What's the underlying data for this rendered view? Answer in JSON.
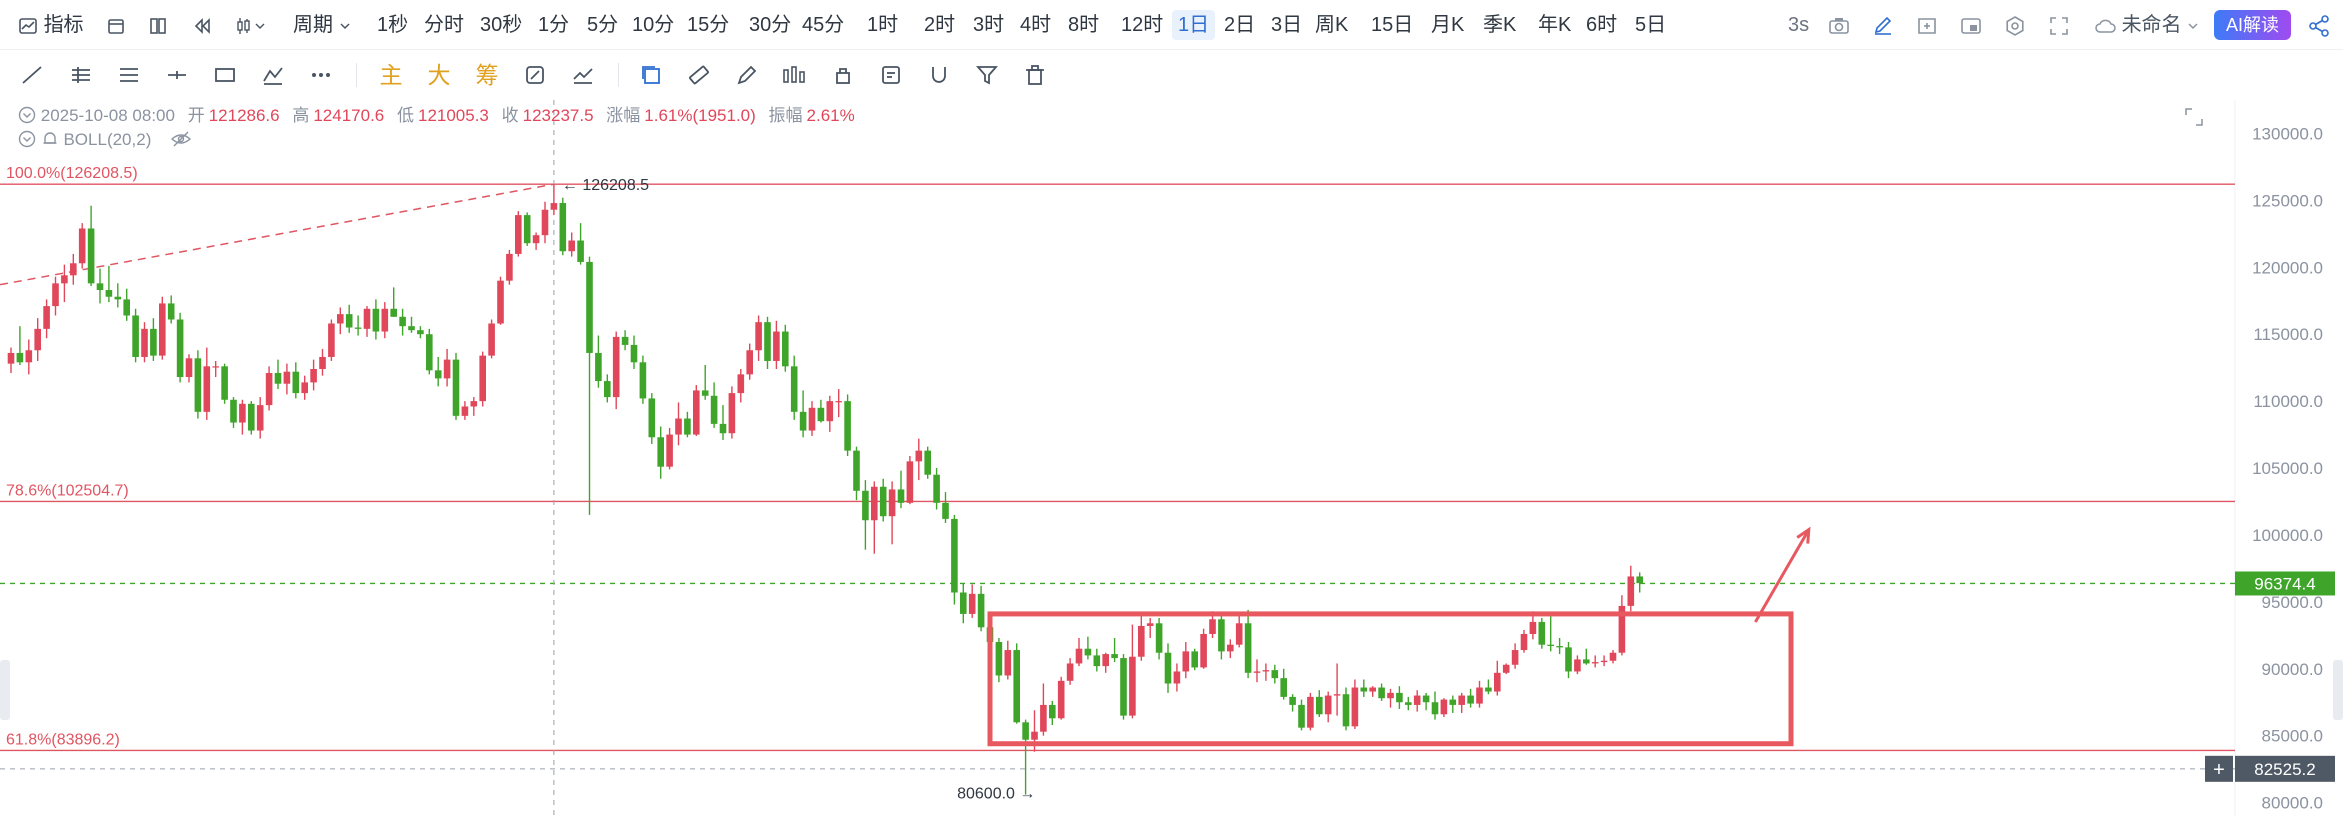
{
  "toolbar": {
    "indicator_label": "指标",
    "period_label": "周期",
    "intervals": [
      "1秒",
      "分时",
      "30秒",
      "1分",
      "5分",
      "10分",
      "15分",
      "30分",
      "45分",
      "1时",
      "2时",
      "3时",
      "4时",
      "8时",
      "12时",
      "1日",
      "2日",
      "3日",
      "周K",
      "15日",
      "月K",
      "季K",
      "年K",
      "6时",
      "5日"
    ],
    "active_interval": "1日",
    "refresh": "3s",
    "layout_name": "未命名",
    "ai_label": "AI解读"
  },
  "drawing_tools": {
    "main_label": "主",
    "big_label": "大",
    "chip_label": "筹"
  },
  "ohlc": {
    "date": "2025-10-08 08:00",
    "open_label": "开",
    "open": "121286.6",
    "high_label": "高",
    "high": "124170.6",
    "low_label": "低",
    "low": "121005.3",
    "close_label": "收",
    "close": "123237.5",
    "change_label": "涨幅",
    "change": "1.61%(1951.0)",
    "amplitude_label": "振幅",
    "amplitude": "2.61%"
  },
  "indicator": {
    "name": "BOLL(20,2)"
  },
  "colors": {
    "up": "#e0475a",
    "down": "#3fa52a",
    "fib_line": "#e05562",
    "box": "#e8585f",
    "price_tag": "#3fa52a",
    "crosshair_tag": "#4f5966",
    "accent": "#2f6fd1"
  },
  "chart_data": {
    "type": "candlestick",
    "ylim": [
      79000,
      132500
    ],
    "y_ticks": [
      80000,
      85000,
      90000,
      95000,
      100000,
      105000,
      110000,
      115000,
      120000,
      125000,
      130000
    ],
    "y_tick_labels": [
      "80000.0",
      "85000.0",
      "90000.0",
      "95000.0",
      "100000.0",
      "105000.0",
      "110000.0",
      "115000.0",
      "120000.0",
      "125000.0",
      "130000.0"
    ],
    "candle_count": 198,
    "candles": [
      [
        112800,
        114000,
        112100,
        113600
      ],
      [
        113600,
        115600,
        112700,
        112900
      ],
      [
        112900,
        114600,
        112000,
        113800
      ],
      [
        113800,
        116200,
        113000,
        115400
      ],
      [
        115400,
        117600,
        114700,
        117100
      ],
      [
        117100,
        119300,
        116400,
        118800
      ],
      [
        118800,
        120200,
        117400,
        119400
      ],
      [
        119400,
        121000,
        118700,
        120300
      ],
      [
        120300,
        123300,
        119900,
        122900
      ],
      [
        122900,
        124600,
        118600,
        118800
      ],
      [
        118800,
        119900,
        117300,
        118300
      ],
      [
        118300,
        120100,
        117400,
        117800
      ],
      [
        117800,
        118800,
        117000,
        117600
      ],
      [
        117600,
        118400,
        116000,
        116400
      ],
      [
        116400,
        116900,
        112900,
        113300
      ],
      [
        113300,
        115900,
        112900,
        115400
      ],
      [
        115400,
        116200,
        113000,
        113400
      ],
      [
        113400,
        117800,
        113100,
        117300
      ],
      [
        117300,
        117900,
        115800,
        116100
      ],
      [
        116100,
        116600,
        111400,
        111800
      ],
      [
        111800,
        113500,
        111400,
        113200
      ],
      [
        113200,
        113800,
        108700,
        109200
      ],
      [
        109200,
        114000,
        108600,
        112600
      ],
      [
        112600,
        113000,
        111800,
        112600
      ],
      [
        112600,
        112800,
        109800,
        110100
      ],
      [
        110100,
        110300,
        108000,
        108400
      ],
      [
        108400,
        110100,
        107500,
        109800
      ],
      [
        109800,
        110000,
        107500,
        107800
      ],
      [
        107800,
        110300,
        107200,
        109700
      ],
      [
        109700,
        112600,
        109300,
        112100
      ],
      [
        112100,
        113100,
        110900,
        111300
      ],
      [
        111300,
        112800,
        110500,
        112200
      ],
      [
        112200,
        112900,
        110200,
        110600
      ],
      [
        110600,
        111900,
        110100,
        111400
      ],
      [
        111400,
        113100,
        110800,
        112400
      ],
      [
        112400,
        113900,
        111900,
        113300
      ],
      [
        113300,
        116100,
        113000,
        115800
      ],
      [
        115800,
        117000,
        115000,
        116500
      ],
      [
        116500,
        117200,
        115100,
        115500
      ],
      [
        115500,
        116400,
        114900,
        115400
      ],
      [
        115400,
        117100,
        114800,
        116900
      ],
      [
        116900,
        117600,
        114600,
        115200
      ],
      [
        115200,
        117400,
        114700,
        116900
      ],
      [
        116900,
        118500,
        116300,
        116300
      ],
      [
        116300,
        116900,
        114900,
        115600
      ],
      [
        115600,
        116300,
        115100,
        115300
      ],
      [
        115300,
        115600,
        114700,
        115000
      ],
      [
        115000,
        115400,
        112000,
        112300
      ],
      [
        112300,
        113300,
        111100,
        111700
      ],
      [
        111700,
        113900,
        111100,
        113100
      ],
      [
        113100,
        113600,
        108600,
        108900
      ],
      [
        108900,
        110000,
        108600,
        109600
      ],
      [
        109600,
        110300,
        108900,
        110000
      ],
      [
        110000,
        113700,
        109600,
        113400
      ],
      [
        113400,
        116100,
        113200,
        115800
      ],
      [
        115800,
        119300,
        115700,
        119000
      ],
      [
        119000,
        121300,
        118700,
        121000
      ],
      [
        121000,
        124200,
        120800,
        123900
      ],
      [
        123900,
        124100,
        121600,
        121800
      ],
      [
        121800,
        122600,
        121300,
        122400
      ],
      [
        122400,
        124900,
        121800,
        124300
      ],
      [
        124300,
        126208,
        123900,
        124800
      ],
      [
        124800,
        125200,
        120900,
        121200
      ],
      [
        121200,
        122600,
        120800,
        122000
      ],
      [
        122000,
        123300,
        120200,
        120400
      ],
      [
        120400,
        120800,
        101500,
        113600
      ],
      [
        113600,
        114900,
        111000,
        111500
      ],
      [
        111500,
        112000,
        109900,
        110300
      ],
      [
        110300,
        115200,
        109400,
        114800
      ],
      [
        114800,
        115300,
        113800,
        114200
      ],
      [
        114200,
        114900,
        112400,
        112900
      ],
      [
        112900,
        113400,
        109800,
        110200
      ],
      [
        110200,
        110600,
        106800,
        107300
      ],
      [
        107300,
        108100,
        104200,
        105100
      ],
      [
        105100,
        108000,
        104900,
        107500
      ],
      [
        107500,
        109900,
        106700,
        108700
      ],
      [
        108700,
        109200,
        107300,
        107500
      ],
      [
        107500,
        111200,
        107400,
        110800
      ],
      [
        110800,
        112700,
        110100,
        110400
      ],
      [
        110400,
        111400,
        108000,
        108300
      ],
      [
        108300,
        109700,
        107100,
        107600
      ],
      [
        107600,
        111100,
        107200,
        110600
      ],
      [
        110600,
        112400,
        109900,
        112000
      ],
      [
        112000,
        114300,
        111600,
        113800
      ],
      [
        113800,
        116400,
        113000,
        115900
      ],
      [
        115900,
        116300,
        112400,
        113000
      ],
      [
        113000,
        116000,
        112400,
        115200
      ],
      [
        115200,
        115700,
        112200,
        112600
      ],
      [
        112600,
        113400,
        108600,
        109200
      ],
      [
        109200,
        110800,
        107300,
        107800
      ],
      [
        107800,
        110000,
        107400,
        109500
      ],
      [
        109500,
        110100,
        108400,
        108500
      ],
      [
        108500,
        110400,
        107700,
        110000
      ],
      [
        110000,
        110900,
        108800,
        110000
      ],
      [
        110000,
        110500,
        105900,
        106300
      ],
      [
        106300,
        106600,
        102600,
        103300
      ],
      [
        103300,
        104100,
        98900,
        101100
      ],
      [
        101100,
        104000,
        98600,
        103600
      ],
      [
        103600,
        104200,
        101000,
        101400
      ],
      [
        101400,
        104000,
        99300,
        103400
      ],
      [
        103400,
        104800,
        102000,
        102400
      ],
      [
        102400,
        105900,
        102300,
        105500
      ],
      [
        105500,
        107200,
        104100,
        106300
      ],
      [
        106300,
        106600,
        104200,
        104500
      ],
      [
        104500,
        105000,
        101900,
        102400
      ],
      [
        102400,
        103200,
        100900,
        101200
      ],
      [
        101200,
        101500,
        94800,
        95700
      ],
      [
        95700,
        96400,
        93400,
        94100
      ],
      [
        94100,
        96300,
        93800,
        95600
      ],
      [
        95600,
        96200,
        92800,
        93100
      ],
      [
        93100,
        93500,
        91600,
        92000
      ],
      [
        92000,
        92300,
        89000,
        89500
      ],
      [
        89500,
        92100,
        89200,
        91400
      ],
      [
        91400,
        91900,
        85900,
        86000
      ],
      [
        86000,
        86200,
        80600,
        84700
      ],
      [
        84700,
        86900,
        83800,
        85300
      ],
      [
        85300,
        88900,
        85000,
        87300
      ],
      [
        87300,
        87600,
        85800,
        86300
      ],
      [
        86300,
        89400,
        86200,
        89100
      ],
      [
        89100,
        90800,
        88800,
        90400
      ],
      [
        90400,
        92300,
        90200,
        91500
      ],
      [
        91500,
        92400,
        90700,
        91000
      ],
      [
        91000,
        91500,
        89800,
        90200
      ],
      [
        90200,
        91200,
        89700,
        91100
      ],
      [
        91100,
        92300,
        90500,
        90800
      ],
      [
        90800,
        91100,
        86200,
        86500
      ],
      [
        86500,
        93300,
        86300,
        90900
      ],
      [
        90900,
        94100,
        90600,
        93200
      ],
      [
        93200,
        93800,
        92300,
        93400
      ],
      [
        93400,
        93800,
        90700,
        91200
      ],
      [
        91200,
        91900,
        88200,
        88900
      ],
      [
        88900,
        90400,
        88300,
        89800
      ],
      [
        89800,
        92000,
        89300,
        91300
      ],
      [
        91300,
        91500,
        89900,
        90100
      ],
      [
        90100,
        93000,
        90000,
        92600
      ],
      [
        92600,
        94300,
        92300,
        93700
      ],
      [
        93700,
        94100,
        90700,
        91300
      ],
      [
        91300,
        92200,
        90800,
        91800
      ],
      [
        91800,
        94000,
        91600,
        93400
      ],
      [
        93400,
        94400,
        89300,
        89700
      ],
      [
        89700,
        90700,
        89000,
        89800
      ],
      [
        89800,
        90400,
        89100,
        89900
      ],
      [
        89900,
        90300,
        88900,
        89300
      ],
      [
        89300,
        90000,
        87700,
        87900
      ],
      [
        87900,
        88100,
        86800,
        87300
      ],
      [
        87300,
        87700,
        85400,
        85600
      ],
      [
        85600,
        88200,
        85400,
        87900
      ],
      [
        87900,
        88400,
        86400,
        86600
      ],
      [
        86600,
        88300,
        86000,
        88000
      ],
      [
        88000,
        90400,
        86500,
        88100
      ],
      [
        88100,
        88600,
        85400,
        85700
      ],
      [
        85700,
        89200,
        85500,
        88600
      ],
      [
        88600,
        89200,
        87900,
        88300
      ],
      [
        88300,
        88700,
        87900,
        88600
      ],
      [
        88600,
        88900,
        87600,
        87800
      ],
      [
        87800,
        88500,
        87100,
        88200
      ],
      [
        88200,
        88700,
        87000,
        87500
      ],
      [
        87500,
        87900,
        86900,
        87300
      ],
      [
        87300,
        88400,
        86800,
        88000
      ],
      [
        88000,
        88200,
        86900,
        87500
      ],
      [
        87500,
        88300,
        86200,
        86600
      ],
      [
        86600,
        87800,
        86400,
        87700
      ],
      [
        87700,
        88000,
        86700,
        87300
      ],
      [
        87300,
        88200,
        86700,
        88000
      ],
      [
        88000,
        88500,
        87100,
        87400
      ],
      [
        87400,
        89100,
        87100,
        88600
      ],
      [
        88600,
        89200,
        88100,
        88300
      ],
      [
        88300,
        90600,
        88000,
        89700
      ],
      [
        89700,
        90400,
        89600,
        90300
      ],
      [
        90300,
        91900,
        90000,
        91400
      ],
      [
        91400,
        92900,
        91200,
        92600
      ],
      [
        92600,
        94300,
        92200,
        93500
      ],
      [
        93500,
        93800,
        91500,
        91800
      ],
      [
        91800,
        94200,
        91300,
        91700
      ],
      [
        91700,
        92300,
        91100,
        91600
      ],
      [
        91600,
        92000,
        89300,
        89800
      ],
      [
        89800,
        91000,
        89600,
        90700
      ],
      [
        90700,
        91500,
        90300,
        90400
      ],
      [
        90400,
        91000,
        90100,
        90500
      ],
      [
        90500,
        91000,
        90200,
        90600
      ],
      [
        90600,
        91400,
        90400,
        91200
      ],
      [
        91200,
        95500,
        91000,
        94700
      ],
      [
        94700,
        97700,
        94300,
        96900
      ],
      [
        96900,
        97200,
        95700,
        96400
      ]
    ],
    "fib_levels": [
      {
        "label": "100.0%(126208.5)",
        "price": 126208.5
      },
      {
        "label": "78.6%(102504.7)",
        "price": 102504.7
      },
      {
        "label": "61.8%(83896.2)",
        "price": 83896.2
      }
    ],
    "high_marker": {
      "price": 126208.5,
      "label": "126208.5",
      "index": 61
    },
    "low_marker": {
      "price": 80600.0,
      "label": "80600.0",
      "index": 116
    },
    "current_price": {
      "price": 96374.4,
      "label": "96374.4"
    },
    "crosshair": {
      "price": 82525.2,
      "label": "82525.2",
      "index": 61
    },
    "range_box": {
      "from_index": 110,
      "to_index": 200,
      "top": 94100,
      "bottom": 84400
    },
    "trend_line": {
      "start_price": 118700,
      "end_price": 126208.5,
      "end_index": 61
    },
    "breakout_arrow": {
      "from_index": 196,
      "from_price": 93500,
      "to_index": 202,
      "to_price": 100400
    }
  }
}
